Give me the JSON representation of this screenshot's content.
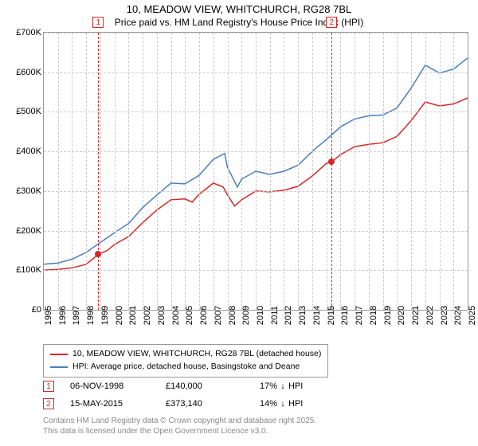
{
  "title": "10, MEADOW VIEW, WHITCHURCH, RG28 7BL",
  "subtitle": "Price paid vs. HM Land Registry's House Price Index (HPI)",
  "chart": {
    "type": "line",
    "background_color": "#ffffff",
    "grid_color": "#cccccc",
    "border_color": "#999999",
    "ylim": [
      0,
      700000
    ],
    "ytick_step": 100000,
    "yticks_labels": [
      "£0",
      "£100K",
      "£200K",
      "£300K",
      "£400K",
      "£500K",
      "£600K",
      "£700K"
    ],
    "xlim": [
      1995,
      2025
    ],
    "xticks": [
      1995,
      1996,
      1997,
      1998,
      1999,
      2000,
      2001,
      2002,
      2003,
      2004,
      2005,
      2006,
      2007,
      2008,
      2009,
      2010,
      2011,
      2012,
      2013,
      2014,
      2015,
      2016,
      2017,
      2018,
      2019,
      2020,
      2021,
      2022,
      2023,
      2024,
      2025
    ],
    "title_fontsize": 13,
    "label_fontsize": 11,
    "series": [
      {
        "name": "10, MEADOW VIEW, WHITCHURCH, RG28 7BL (detached house)",
        "color": "#d62728",
        "line_width": 1.5,
        "points": [
          [
            1995,
            100000
          ],
          [
            1996,
            102000
          ],
          [
            1997,
            106000
          ],
          [
            1998,
            115000
          ],
          [
            1998.85,
            140000
          ],
          [
            1999.5,
            150000
          ],
          [
            2000,
            165000
          ],
          [
            2001,
            185000
          ],
          [
            2002,
            220000
          ],
          [
            2003,
            252000
          ],
          [
            2004,
            278000
          ],
          [
            2005,
            280000
          ],
          [
            2005.5,
            272000
          ],
          [
            2006,
            292000
          ],
          [
            2007,
            320000
          ],
          [
            2007.7,
            310000
          ],
          [
            2008,
            290000
          ],
          [
            2008.5,
            262000
          ],
          [
            2009,
            278000
          ],
          [
            2010,
            300000
          ],
          [
            2011,
            298000
          ],
          [
            2012,
            302000
          ],
          [
            2013,
            312000
          ],
          [
            2014,
            338000
          ],
          [
            2015,
            370000
          ],
          [
            2015.37,
            373140
          ],
          [
            2016,
            392000
          ],
          [
            2017,
            412000
          ],
          [
            2018,
            418000
          ],
          [
            2019,
            422000
          ],
          [
            2020,
            438000
          ],
          [
            2021,
            478000
          ],
          [
            2022,
            525000
          ],
          [
            2023,
            515000
          ],
          [
            2024,
            520000
          ],
          [
            2025,
            535000
          ]
        ]
      },
      {
        "name": "HPI: Average price, detached house, Basingstoke and Deane",
        "color": "#4a7ebb",
        "line_width": 1.5,
        "points": [
          [
            1995,
            115000
          ],
          [
            1996,
            118000
          ],
          [
            1997,
            128000
          ],
          [
            1998,
            145000
          ],
          [
            1999,
            170000
          ],
          [
            2000,
            195000
          ],
          [
            2001,
            218000
          ],
          [
            2002,
            258000
          ],
          [
            2003,
            290000
          ],
          [
            2004,
            320000
          ],
          [
            2005,
            318000
          ],
          [
            2006,
            340000
          ],
          [
            2007,
            380000
          ],
          [
            2007.8,
            395000
          ],
          [
            2008,
            360000
          ],
          [
            2008.7,
            310000
          ],
          [
            2009,
            330000
          ],
          [
            2010,
            350000
          ],
          [
            2011,
            342000
          ],
          [
            2012,
            350000
          ],
          [
            2013,
            365000
          ],
          [
            2014,
            400000
          ],
          [
            2015,
            430000
          ],
          [
            2016,
            462000
          ],
          [
            2017,
            482000
          ],
          [
            2018,
            490000
          ],
          [
            2019,
            492000
          ],
          [
            2020,
            510000
          ],
          [
            2021,
            560000
          ],
          [
            2022,
            618000
          ],
          [
            2023,
            598000
          ],
          [
            2024,
            608000
          ],
          [
            2025,
            636000
          ]
        ]
      }
    ],
    "markers": [
      {
        "index": "1",
        "x": 1998.85,
        "y": 140000,
        "color": "#d62728",
        "date": "06-NOV-1998",
        "price": "£140,000",
        "pct": "17%",
        "direction": "↓",
        "vs": "HPI"
      },
      {
        "index": "2",
        "x": 2015.37,
        "y": 373140,
        "color": "#d62728",
        "date": "15-MAY-2015",
        "price": "£373,140",
        "pct": "14%",
        "direction": "↓",
        "vs": "HPI"
      }
    ]
  },
  "legend": {
    "items": [
      {
        "color": "#d62728",
        "label": "10, MEADOW VIEW, WHITCHURCH, RG28 7BL (detached house)"
      },
      {
        "color": "#4a7ebb",
        "label": "HPI: Average price, detached house, Basingstoke and Deane"
      }
    ]
  },
  "footer": {
    "line1": "Contains HM Land Registry data © Crown copyright and database right 2025.",
    "line2": "This data is licensed under the Open Government Licence v3.0."
  }
}
